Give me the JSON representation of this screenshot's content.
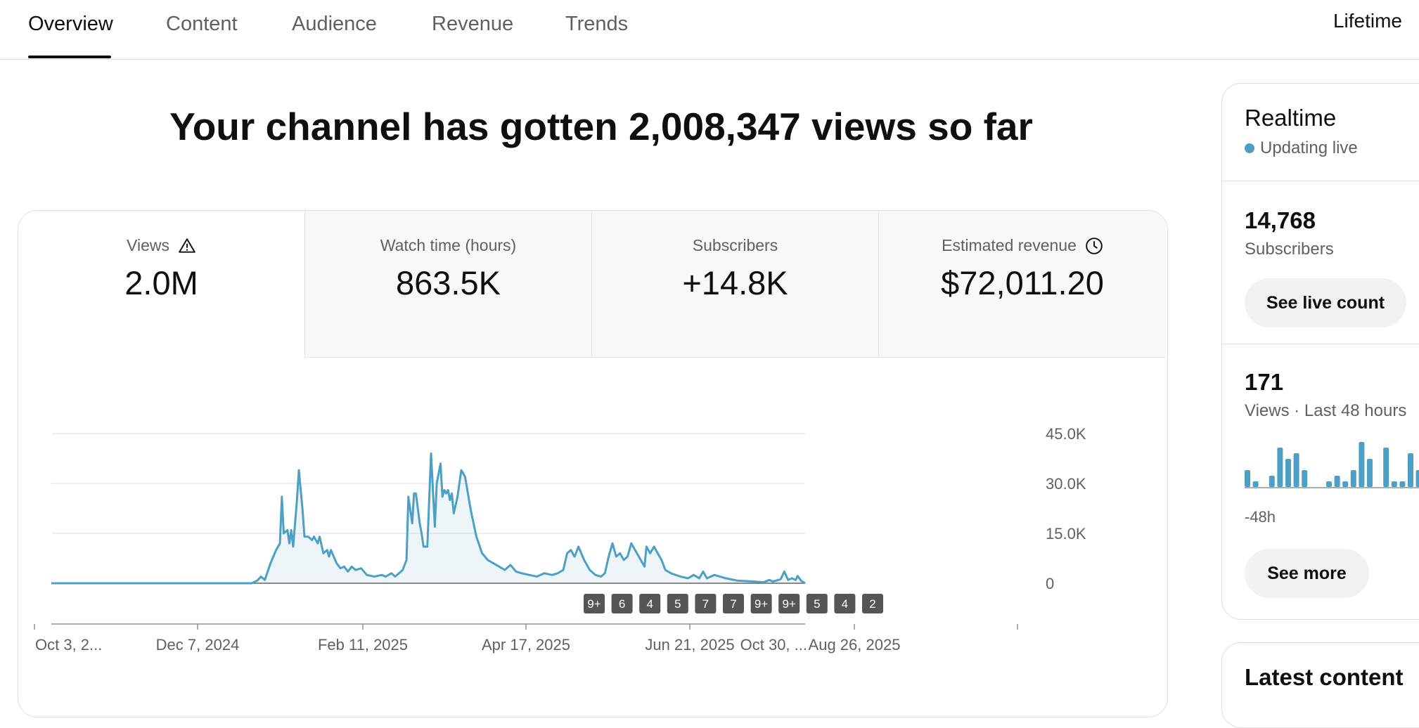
{
  "tabs": [
    {
      "label": "Overview",
      "active": true
    },
    {
      "label": "Content"
    },
    {
      "label": "Audience"
    },
    {
      "label": "Revenue"
    },
    {
      "label": "Trends"
    }
  ],
  "period_label": "Lifetime",
  "headline": "Your channel has gotten 2,008,347 views so far",
  "metrics": [
    {
      "label": "Views",
      "value": "2.0M",
      "icon": "warning-icon",
      "active": true
    },
    {
      "label": "Watch time (hours)",
      "value": "863.5K"
    },
    {
      "label": "Subscribers",
      "value": "+14.8K"
    },
    {
      "label": "Estimated revenue",
      "value": "$72,011.20",
      "icon": "clock-icon"
    }
  ],
  "chart_data": {
    "type": "area",
    "series_name": "Views",
    "color": "#4da0c5",
    "ylim": [
      0,
      45000
    ],
    "y_ticks": [
      "45.0K",
      "30.0K",
      "15.0K",
      "0"
    ],
    "y_tick_values": [
      45000,
      30000,
      15000,
      0
    ],
    "x_tick_labels": [
      "Oct 3, 2...",
      "Dec 7, 2024",
      "Feb 11, 2025",
      "Apr 17, 2025",
      "Jun 21, 2025",
      "Aug 26, 2025",
      "Oct 30, ..."
    ],
    "points": [
      [
        "2024-10-03",
        0
      ],
      [
        "2024-12-07",
        0
      ],
      [
        "2025-01-17",
        0
      ],
      [
        "2025-01-20",
        800
      ],
      [
        "2025-01-22",
        2000
      ],
      [
        "2025-01-24",
        1000
      ],
      [
        "2025-01-27",
        6000
      ],
      [
        "2025-01-30",
        10000
      ],
      [
        "2025-02-01",
        12000
      ],
      [
        "2025-02-02",
        26000
      ],
      [
        "2025-02-03",
        15000
      ],
      [
        "2025-02-05",
        16000
      ],
      [
        "2025-02-06",
        12000
      ],
      [
        "2025-02-07",
        16000
      ],
      [
        "2025-02-08",
        11000
      ],
      [
        "2025-02-10",
        25000
      ],
      [
        "2025-02-11",
        34000
      ],
      [
        "2025-02-13",
        22000
      ],
      [
        "2025-02-14",
        14000
      ],
      [
        "2025-02-16",
        14000
      ],
      [
        "2025-02-18",
        13000
      ],
      [
        "2025-02-19",
        14000
      ],
      [
        "2025-02-21",
        12000
      ],
      [
        "2025-02-22",
        14000
      ],
      [
        "2025-02-24",
        9000
      ],
      [
        "2025-02-26",
        10000
      ],
      [
        "2025-02-27",
        8000
      ],
      [
        "2025-02-28",
        10000
      ],
      [
        "2025-03-03",
        6000
      ],
      [
        "2025-03-05",
        4500
      ],
      [
        "2025-03-07",
        5000
      ],
      [
        "2025-03-09",
        3500
      ],
      [
        "2025-03-11",
        5000
      ],
      [
        "2025-03-13",
        4000
      ],
      [
        "2025-03-16",
        4500
      ],
      [
        "2025-03-19",
        2500
      ],
      [
        "2025-03-23",
        2000
      ],
      [
        "2025-03-27",
        2500
      ],
      [
        "2025-03-29",
        2000
      ],
      [
        "2025-04-01",
        3000
      ],
      [
        "2025-04-03",
        2000
      ],
      [
        "2025-04-05",
        3000
      ],
      [
        "2025-04-07",
        4000
      ],
      [
        "2025-04-09",
        7000
      ],
      [
        "2025-04-10",
        26000
      ],
      [
        "2025-04-12",
        18000
      ],
      [
        "2025-04-13",
        27000
      ],
      [
        "2025-04-14",
        27000
      ],
      [
        "2025-04-16",
        18000
      ],
      [
        "2025-04-17",
        15000
      ],
      [
        "2025-04-18",
        11000
      ],
      [
        "2025-04-20",
        11000
      ],
      [
        "2025-04-22",
        39000
      ],
      [
        "2025-04-24",
        17000
      ],
      [
        "2025-04-25",
        30000
      ],
      [
        "2025-04-27",
        36000
      ],
      [
        "2025-04-28",
        26000
      ],
      [
        "2025-04-29",
        28000
      ],
      [
        "2025-04-30",
        27000
      ],
      [
        "2025-05-01",
        28000
      ],
      [
        "2025-05-02",
        25000
      ],
      [
        "2025-05-03",
        27000
      ],
      [
        "2025-05-04",
        21000
      ],
      [
        "2025-05-06",
        26000
      ],
      [
        "2025-05-08",
        34000
      ],
      [
        "2025-05-10",
        32000
      ],
      [
        "2025-05-13",
        22000
      ],
      [
        "2025-05-16",
        14000
      ],
      [
        "2025-05-19",
        9000
      ],
      [
        "2025-05-22",
        7000
      ],
      [
        "2025-05-25",
        6000
      ],
      [
        "2025-05-28",
        5000
      ],
      [
        "2025-05-31",
        4000
      ],
      [
        "2025-06-03",
        5500
      ],
      [
        "2025-06-06",
        3500
      ],
      [
        "2025-06-09",
        3000
      ],
      [
        "2025-06-13",
        2500
      ],
      [
        "2025-06-17",
        2000
      ],
      [
        "2025-06-21",
        3000
      ],
      [
        "2025-06-25",
        2500
      ],
      [
        "2025-06-28",
        3000
      ],
      [
        "2025-07-01",
        4000
      ],
      [
        "2025-07-03",
        9000
      ],
      [
        "2025-07-05",
        10000
      ],
      [
        "2025-07-07",
        8000
      ],
      [
        "2025-07-09",
        11000
      ],
      [
        "2025-07-12",
        7000
      ],
      [
        "2025-07-15",
        4000
      ],
      [
        "2025-07-18",
        2500
      ],
      [
        "2025-07-21",
        2000
      ],
      [
        "2025-07-23",
        3000
      ],
      [
        "2025-07-25",
        8000
      ],
      [
        "2025-07-27",
        12000
      ],
      [
        "2025-07-29",
        8000
      ],
      [
        "2025-07-31",
        9000
      ],
      [
        "2025-08-02",
        7000
      ],
      [
        "2025-08-04",
        8000
      ],
      [
        "2025-08-06",
        12000
      ],
      [
        "2025-08-08",
        10000
      ],
      [
        "2025-08-11",
        7000
      ],
      [
        "2025-08-13",
        5000
      ],
      [
        "2025-08-14",
        11000
      ],
      [
        "2025-08-16",
        9000
      ],
      [
        "2025-08-18",
        11000
      ],
      [
        "2025-08-20",
        9000
      ],
      [
        "2025-08-22",
        7000
      ],
      [
        "2025-08-24",
        4000
      ],
      [
        "2025-08-27",
        3000
      ],
      [
        "2025-09-01",
        2000
      ],
      [
        "2025-09-05",
        1500
      ],
      [
        "2025-09-08",
        2500
      ],
      [
        "2025-09-11",
        1500
      ],
      [
        "2025-09-13",
        3500
      ],
      [
        "2025-09-15",
        1500
      ],
      [
        "2025-09-19",
        2500
      ],
      [
        "2025-09-25",
        1500
      ],
      [
        "2025-10-01",
        800
      ],
      [
        "2025-10-10",
        500
      ],
      [
        "2025-10-15",
        300
      ],
      [
        "2025-10-18",
        1000
      ],
      [
        "2025-10-20",
        500
      ],
      [
        "2025-10-24",
        1200
      ],
      [
        "2025-10-26",
        3500
      ],
      [
        "2025-10-28",
        1000
      ],
      [
        "2025-10-30",
        1500
      ],
      [
        "2025-11-01",
        1000
      ],
      [
        "2025-11-02",
        2200
      ],
      [
        "2025-11-04",
        700
      ],
      [
        "2025-11-06",
        0
      ]
    ],
    "markers": [
      "9+",
      "6",
      "4",
      "5",
      "7",
      "7",
      "9+",
      "9+",
      "5",
      "4",
      "2"
    ]
  },
  "realtime": {
    "title": "Realtime",
    "live_label": "Updating live",
    "subscribers_value": "14,768",
    "subscribers_label": "Subscribers",
    "see_live_count": "See live count",
    "views_value": "171",
    "views_label": "Views · Last 48 hours",
    "mini_bars": [
      3,
      1,
      0,
      2,
      7,
      5,
      6,
      3,
      0,
      0,
      1,
      2,
      1,
      3,
      8,
      5,
      0,
      7,
      1,
      1,
      6,
      3
    ],
    "range_label": "-48h",
    "see_more": "See more"
  },
  "latest_content": {
    "title": "Latest content"
  }
}
